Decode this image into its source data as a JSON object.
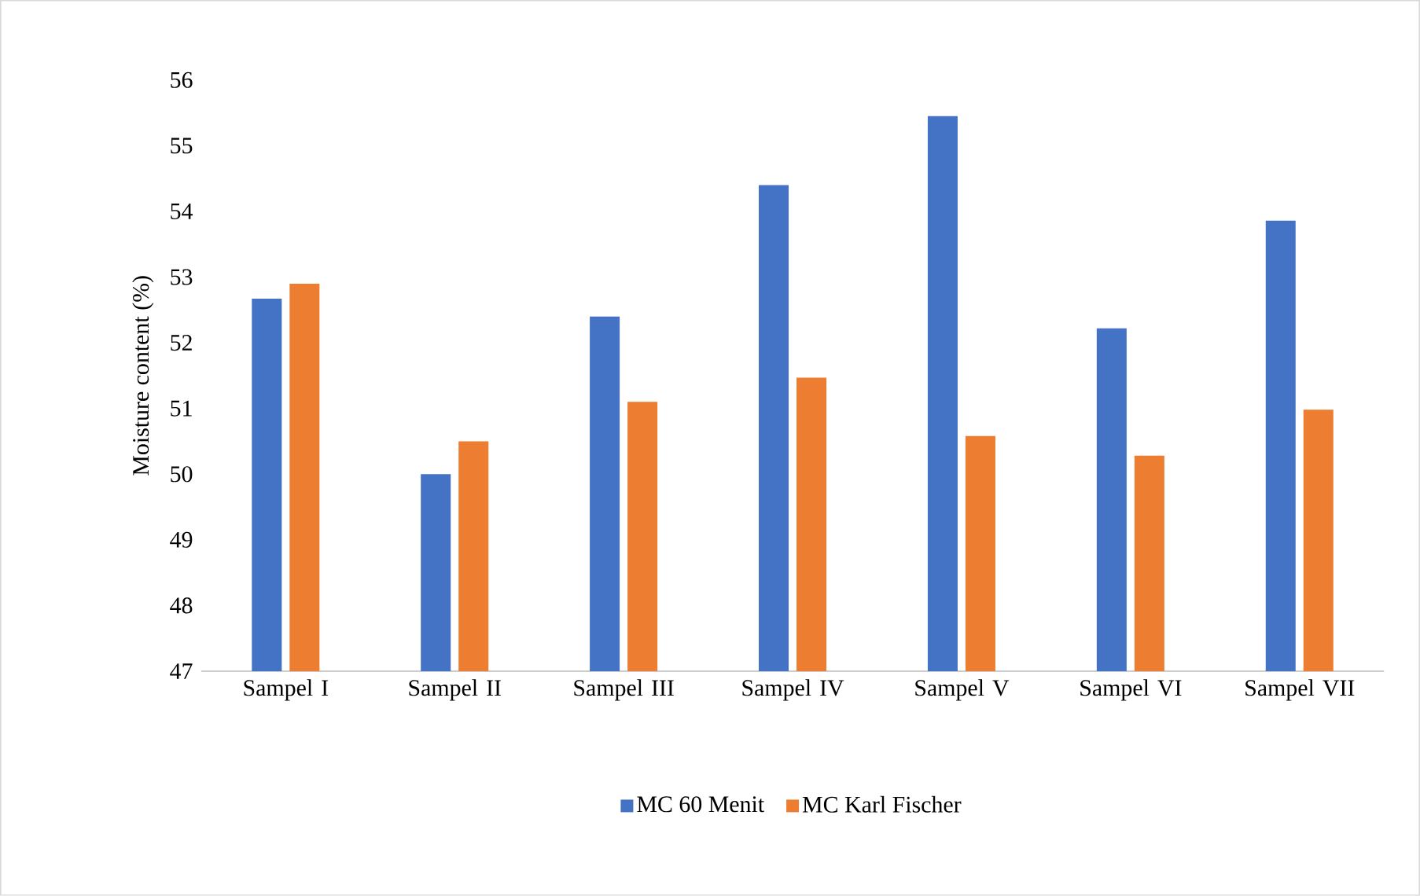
{
  "chart_data": {
    "type": "bar",
    "ylabel": "Moisture content (%)",
    "categories": [
      "Sampel I",
      "Sampel II",
      "Sampel III",
      "Sampel IV",
      "Sampel V",
      "Sampel VI",
      "Sampel VII"
    ],
    "series": [
      {
        "name": "MC 60 Menit",
        "color": "#4472c4",
        "values": [
          52.67,
          50.0,
          52.4,
          54.4,
          55.45,
          52.22,
          53.86
        ]
      },
      {
        "name": "MC Karl Fischer",
        "color": "#ed7d31",
        "values": [
          52.9,
          50.5,
          51.1,
          51.47,
          50.58,
          50.28,
          50.98
        ]
      }
    ],
    "ylim": [
      47,
      56
    ],
    "yticks": [
      47,
      48,
      49,
      50,
      51,
      52,
      53,
      54,
      55,
      56
    ],
    "grid": false,
    "legend": "bottom"
  }
}
